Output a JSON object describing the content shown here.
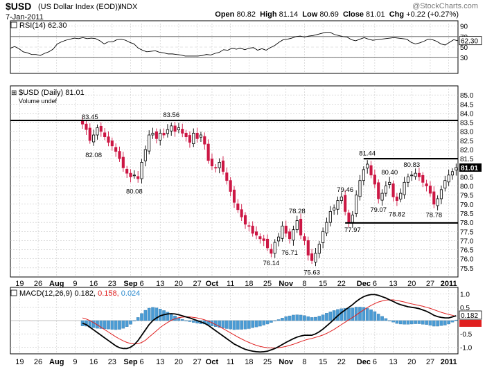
{
  "header": {
    "symbol": "$USD",
    "name": "(US Dollar Index (EOD))",
    "exchange": "INDX",
    "date": "7-Jan-2011",
    "open_label": "Open",
    "open": "80.82",
    "high_label": "High",
    "high": "81.14",
    "low_label": "Low",
    "low": "80.69",
    "close_label": "Close",
    "close": "81.01",
    "chg_label": "Chg",
    "chg": "+0.22 (+0.27%)",
    "watermark": "@StockCharts.com"
  },
  "colors": {
    "up_candle": "#ffffff",
    "down_candle": "#cc1744",
    "rsi_line": "#000000",
    "rsi_fill": "#9b7b78",
    "macd_line": "#000000",
    "signal_line": "#e02020",
    "histogram": "#4a9bd4",
    "histogram_text": "#2b8bd0",
    "grid": "#c8c8c8",
    "last_price_box": "#000000"
  },
  "chart_data": [
    {
      "type": "line",
      "panel": "rsi",
      "legend": "RSI(14) 62.30",
      "last_value": "62.30",
      "ylim": [
        0,
        100
      ],
      "yticks": [
        30,
        50,
        70,
        90
      ],
      "ref_lines": [
        30,
        70
      ],
      "values": [
        48,
        51,
        47,
        41,
        39,
        36,
        36,
        34,
        38,
        41,
        46,
        56,
        60,
        63,
        65,
        67,
        66,
        68,
        66,
        67,
        66,
        62,
        56,
        60,
        60,
        64,
        65,
        63,
        59,
        56,
        48,
        44,
        41,
        42,
        43,
        40,
        39,
        37,
        37,
        36,
        35,
        33,
        33,
        33,
        33,
        34,
        36,
        35,
        38,
        40,
        45,
        44,
        48,
        46,
        48,
        45,
        48,
        49,
        44,
        47,
        44,
        49,
        53,
        59,
        64,
        65,
        67,
        70,
        71,
        69,
        71,
        72,
        74,
        76,
        78,
        78,
        74,
        72,
        70,
        69,
        64,
        62,
        65,
        68,
        65,
        63,
        64,
        65,
        66,
        67,
        68,
        67,
        66,
        65,
        59,
        56,
        58,
        61,
        65,
        64,
        61,
        56,
        54,
        59,
        64,
        62
      ]
    },
    {
      "type": "candlestick",
      "panel": "price",
      "legend": "$USD (Daily) 81.01",
      "volume_legend": "Volume undef",
      "ylim": [
        75.0,
        85.5
      ],
      "yticks": [
        75.5,
        76.0,
        76.5,
        77.0,
        77.5,
        78.0,
        78.5,
        79.0,
        79.5,
        80.0,
        80.5,
        81.0,
        81.5,
        82.0,
        82.5,
        83.0,
        83.5,
        84.0,
        84.5,
        85.0
      ],
      "last_price_label": "81.01",
      "horizontal_lines": [
        {
          "y": 83.6,
          "from": "start",
          "to": "end"
        },
        {
          "y": 81.5,
          "from": "Dec 1",
          "to": "end"
        },
        {
          "y": 77.97,
          "from": "Nov 19",
          "to": "end"
        }
      ],
      "annotations": [
        {
          "text": "83.45",
          "at": 83.45,
          "bar": 2
        },
        {
          "text": "82.08",
          "at": 82.08,
          "bar": 3
        },
        {
          "text": "80.08",
          "at": 80.08,
          "bar": 14
        },
        {
          "text": "83.56",
          "at": 83.56,
          "bar": 24
        },
        {
          "text": "76.14",
          "at": 76.14,
          "bar": 51
        },
        {
          "text": "76.71",
          "at": 76.71,
          "bar": 56
        },
        {
          "text": "78.28",
          "at": 78.28,
          "bar": 58
        },
        {
          "text": "75.63",
          "at": 75.63,
          "bar": 62
        },
        {
          "text": "79.46",
          "at": 79.46,
          "bar": 71
        },
        {
          "text": "77.97",
          "at": 77.97,
          "bar": 73
        },
        {
          "text": "81.44",
          "at": 81.44,
          "bar": 77
        },
        {
          "text": "79.07",
          "at": 79.07,
          "bar": 80
        },
        {
          "text": "80.40",
          "at": 80.4,
          "bar": 83
        },
        {
          "text": "78.82",
          "at": 78.82,
          "bar": 85
        },
        {
          "text": "80.83",
          "at": 80.83,
          "bar": 89
        },
        {
          "text": "78.78",
          "at": 78.78,
          "bar": 95
        }
      ],
      "close": [
        83.4,
        83.1,
        82.5,
        82.8,
        83.2,
        83.0,
        82.7,
        82.4,
        82.2,
        81.9,
        81.5,
        81.0,
        80.7,
        80.5,
        80.6,
        80.4,
        81.3,
        82.0,
        82.8,
        82.9,
        82.6,
        82.9,
        82.8,
        83.1,
        83.3,
        83.0,
        83.2,
        82.9,
        82.7,
        82.4,
        82.9,
        82.6,
        82.8,
        82.3,
        81.4,
        81.1,
        81.0,
        81.3,
        80.8,
        80.3,
        79.7,
        79.1,
        78.7,
        78.3,
        77.9,
        77.8,
        77.4,
        77.3,
        77.1,
        77.0,
        76.6,
        76.3,
        76.9,
        77.2,
        77.8,
        77.4,
        77.1,
        77.6,
        78.1,
        77.3,
        77.0,
        76.2,
        75.9,
        76.3,
        76.8,
        77.5,
        78.0,
        78.6,
        78.8,
        79.2,
        79.4,
        78.6,
        78.0,
        78.4,
        79.5,
        80.3,
        80.9,
        81.2,
        80.6,
        80.1,
        79.3,
        79.6,
        80.0,
        80.2,
        79.4,
        79.2,
        79.6,
        80.2,
        80.5,
        80.6,
        80.7,
        80.5,
        80.2,
        80.0,
        79.6,
        79.0,
        79.3,
        79.8,
        80.3,
        80.6,
        80.79,
        81.01
      ]
    },
    {
      "type": "line+histogram",
      "panel": "macd",
      "legend_name": "MACD(12,26,9)",
      "legend_macd": "0.182",
      "legend_signal": "0.158",
      "legend_hist": "0.024",
      "ylim": [
        -1.25,
        1.25
      ],
      "yticks": [
        -1.0,
        -0.5,
        0.5,
        1.0
      ],
      "macd": [
        -0.1,
        -0.15,
        -0.25,
        -0.35,
        -0.45,
        -0.55,
        -0.65,
        -0.75,
        -0.85,
        -0.95,
        -1.02,
        -1.05,
        -1.05,
        -1.0,
        -0.9,
        -0.75,
        -0.55,
        -0.35,
        -0.15,
        0.0,
        0.1,
        0.18,
        0.22,
        0.25,
        0.26,
        0.25,
        0.22,
        0.18,
        0.14,
        0.1,
        0.05,
        0.0,
        -0.05,
        -0.1,
        -0.18,
        -0.28,
        -0.38,
        -0.48,
        -0.58,
        -0.68,
        -0.78,
        -0.88,
        -0.95,
        -1.02,
        -1.08,
        -1.12,
        -1.15,
        -1.17,
        -1.18,
        -1.17,
        -1.15,
        -1.1,
        -1.05,
        -0.98,
        -0.9,
        -0.82,
        -0.75,
        -0.68,
        -0.62,
        -0.58,
        -0.55,
        -0.55,
        -0.55,
        -0.5,
        -0.42,
        -0.32,
        -0.2,
        -0.08,
        0.05,
        0.18,
        0.3,
        0.4,
        0.5,
        0.6,
        0.72,
        0.82,
        0.9,
        0.95,
        0.98,
        0.98,
        0.95,
        0.9,
        0.85,
        0.78,
        0.72,
        0.65,
        0.6,
        0.56,
        0.52,
        0.5,
        0.48,
        0.45,
        0.4,
        0.35,
        0.28,
        0.2,
        0.15,
        0.12,
        0.1,
        0.1,
        0.14,
        0.182
      ],
      "signal": [
        0.1,
        0.06,
        0.0,
        -0.08,
        -0.16,
        -0.25,
        -0.34,
        -0.43,
        -0.52,
        -0.61,
        -0.69,
        -0.76,
        -0.82,
        -0.86,
        -0.88,
        -0.87,
        -0.82,
        -0.74,
        -0.62,
        -0.5,
        -0.38,
        -0.26,
        -0.16,
        -0.07,
        0.01,
        0.07,
        0.11,
        0.13,
        0.14,
        0.14,
        0.12,
        0.1,
        0.07,
        0.03,
        -0.02,
        -0.08,
        -0.15,
        -0.22,
        -0.3,
        -0.38,
        -0.46,
        -0.54,
        -0.62,
        -0.69,
        -0.76,
        -0.82,
        -0.88,
        -0.93,
        -0.97,
        -1.0,
        -1.02,
        -1.03,
        -1.03,
        -1.02,
        -1.0,
        -0.97,
        -0.93,
        -0.89,
        -0.84,
        -0.79,
        -0.74,
        -0.7,
        -0.67,
        -0.63,
        -0.59,
        -0.54,
        -0.48,
        -0.41,
        -0.33,
        -0.24,
        -0.15,
        -0.06,
        0.03,
        0.12,
        0.21,
        0.31,
        0.4,
        0.49,
        0.57,
        0.64,
        0.7,
        0.74,
        0.77,
        0.78,
        0.78,
        0.76,
        0.73,
        0.7,
        0.66,
        0.63,
        0.6,
        0.57,
        0.54,
        0.5,
        0.46,
        0.41,
        0.36,
        0.31,
        0.27,
        0.23,
        0.2,
        0.158
      ]
    }
  ],
  "x_axis": {
    "ticks": [
      {
        "label": "19",
        "bar": 2
      },
      {
        "label": "26",
        "bar": 7
      },
      {
        "label": "Aug",
        "bar": 12,
        "bold": true
      },
      {
        "label": "9",
        "bar": 17
      },
      {
        "label": "16",
        "bar": 22
      },
      {
        "label": "23",
        "bar": 27
      },
      {
        "label": "Sep",
        "bar": 32,
        "bold": true
      },
      {
        "label": "6",
        "bar": 35
      },
      {
        "label": "13",
        "bar": 40
      },
      {
        "label": "20",
        "bar": 45
      },
      {
        "label": "27",
        "bar": 50
      },
      {
        "label": "Oct",
        "bar": 54,
        "bold": true
      },
      {
        "label": "11",
        "bar": 59
      },
      {
        "label": "18",
        "bar": 64
      },
      {
        "label": "25",
        "bar": 69
      },
      {
        "label": "Nov",
        "bar": 74,
        "bold": true
      },
      {
        "label": "8",
        "bar": 79
      },
      {
        "label": "15",
        "bar": 84
      },
      {
        "label": "22",
        "bar": 89
      },
      {
        "label": "Dec",
        "bar": 95,
        "bold": true
      },
      {
        "label": "6",
        "bar": 98
      },
      {
        "label": "13",
        "bar": 103
      },
      {
        "label": "20",
        "bar": 108
      },
      {
        "label": "27",
        "bar": 113
      },
      {
        "label": "2011",
        "bar": 118,
        "bold": true
      }
    ]
  }
}
